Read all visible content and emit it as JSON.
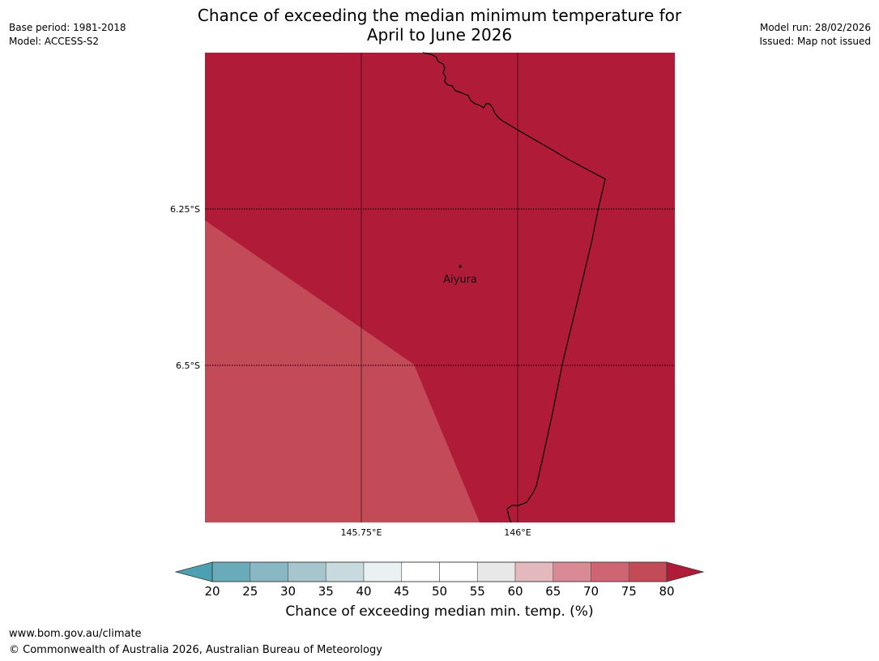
{
  "title": {
    "line1": "Chance of exceeding the median minimum temperature for",
    "line2": "April to June 2026"
  },
  "meta_left": {
    "base_period": "Base period: 1981-2018",
    "model": "Model: ACCESS-S2"
  },
  "meta_right": {
    "model_run": "Model run: 28/02/2026",
    "issued": "Issued: Map not issued"
  },
  "map": {
    "latitude_labels": [
      "6.25°S",
      "6.5°S"
    ],
    "longitude_labels": [
      "145.75°E",
      "146°E"
    ],
    "places": [
      {
        "name": "Aiyura",
        "lat": -6.34,
        "lon": 145.9
      }
    ],
    "fill_colors": {
      "above_80": "#b01c38",
      "band_75_80": "#c24b57"
    }
  },
  "colorbar": {
    "ticks": [
      "20",
      "25",
      "30",
      "35",
      "40",
      "45",
      "50",
      "55",
      "60",
      "65",
      "70",
      "75",
      "80"
    ],
    "colors": {
      "below": "#4ca0b1",
      "bins": [
        "#6aabb9",
        "#8ab7c4",
        "#a7c5cc",
        "#c8dadd",
        "#eaf1f3",
        "#ffffff",
        "#ffffff",
        "#e8e8e8",
        "#e4b9be",
        "#d98a95",
        "#cf6572",
        "#c24b57"
      ],
      "above": "#b01c38"
    },
    "label": "Chance of exceeding median min. temp. (%)"
  },
  "footer": {
    "url": "www.bom.gov.au/climate",
    "copyright": "© Commonwealth of Australia 2026, Australian Bureau of Meteorology"
  }
}
